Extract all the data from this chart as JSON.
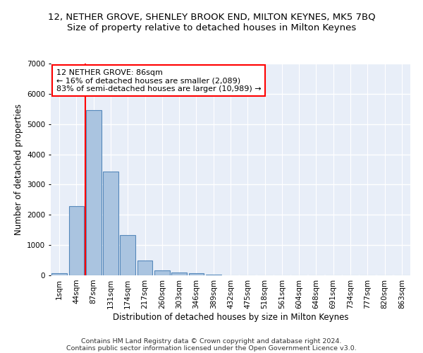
{
  "title": "12, NETHER GROVE, SHENLEY BROOK END, MILTON KEYNES, MK5 7BQ",
  "subtitle": "Size of property relative to detached houses in Milton Keynes",
  "xlabel": "Distribution of detached houses by size in Milton Keynes",
  "ylabel": "Number of detached properties",
  "categories": [
    "1sqm",
    "44sqm",
    "87sqm",
    "131sqm",
    "174sqm",
    "217sqm",
    "260sqm",
    "303sqm",
    "346sqm",
    "389sqm",
    "432sqm",
    "475sqm",
    "518sqm",
    "561sqm",
    "604sqm",
    "648sqm",
    "691sqm",
    "734sqm",
    "777sqm",
    "820sqm",
    "863sqm"
  ],
  "values": [
    80,
    2290,
    5450,
    3440,
    1320,
    480,
    160,
    90,
    60,
    35,
    0,
    0,
    0,
    0,
    0,
    0,
    0,
    0,
    0,
    0,
    0
  ],
  "bar_color": "#aac4e0",
  "bar_edge_color": "#5588bb",
  "vline_color": "red",
  "vline_x_index": 2,
  "annotation_line1": "12 NETHER GROVE: 86sqm",
  "annotation_line2": "← 16% of detached houses are smaller (2,089)",
  "annotation_line3": "83% of semi-detached houses are larger (10,989) →",
  "annotation_box_color": "white",
  "annotation_box_edge": "red",
  "ylim": [
    0,
    7000
  ],
  "yticks": [
    0,
    1000,
    2000,
    3000,
    4000,
    5000,
    6000,
    7000
  ],
  "bg_color": "#e8eef8",
  "grid_color": "white",
  "footer_line1": "Contains HM Land Registry data © Crown copyright and database right 2024.",
  "footer_line2": "Contains public sector information licensed under the Open Government Licence v3.0.",
  "title_fontsize": 9.5,
  "subtitle_fontsize": 9.5,
  "xlabel_fontsize": 8.5,
  "ylabel_fontsize": 8.5,
  "tick_fontsize": 7.5,
  "annotation_fontsize": 8,
  "footer_fontsize": 6.8
}
